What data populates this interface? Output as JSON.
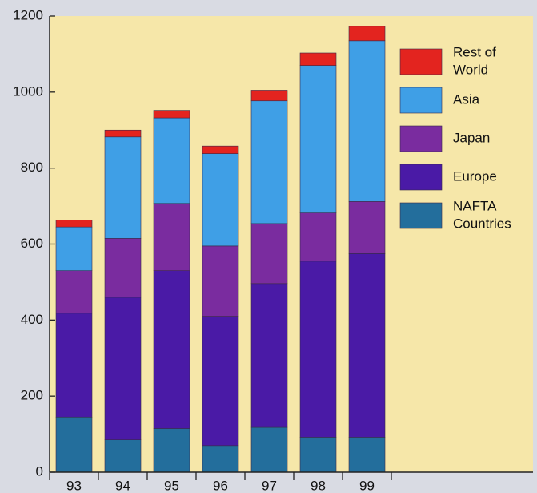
{
  "colors": {
    "page_background": "#d9dbe3",
    "plot_background": "#f6e7a9",
    "nafta": "#236e9c",
    "europe": "#4a1aa6",
    "japan": "#7a2c9f",
    "asia": "#3f9fe6",
    "rest_of_world": "#e3241f",
    "axis": "#222222",
    "text": "#111111"
  },
  "chart_data": {
    "type": "bar",
    "stacked": true,
    "title": "",
    "xlabel": "",
    "ylabel": "",
    "ylim": [
      0,
      1200
    ],
    "yticks": [
      0,
      200,
      400,
      600,
      800,
      1000,
      1200
    ],
    "categories": [
      "93",
      "94",
      "95",
      "96",
      "97",
      "98",
      "99"
    ],
    "grid": false,
    "legend_position": "top-right, inside plot",
    "series": [
      {
        "name": "NAFTA Countries",
        "legend_lines": [
          "NAFTA",
          "Countries"
        ],
        "color_key": "nafta",
        "values": [
          145,
          85,
          115,
          70,
          118,
          92,
          92
        ]
      },
      {
        "name": "Europe",
        "legend_lines": [
          "Europe"
        ],
        "color_key": "europe",
        "values": [
          273,
          375,
          415,
          340,
          378,
          463,
          483
        ]
      },
      {
        "name": "Japan",
        "legend_lines": [
          "Japan"
        ],
        "color_key": "japan",
        "values": [
          112,
          155,
          177,
          185,
          158,
          127,
          137
        ]
      },
      {
        "name": "Asia",
        "legend_lines": [
          "Asia"
        ],
        "color_key": "asia",
        "values": [
          115,
          267,
          225,
          243,
          323,
          388,
          423
        ]
      },
      {
        "name": "Rest of World",
        "legend_lines": [
          "Rest of",
          "World"
        ],
        "color_key": "rest_of_world",
        "values": [
          18,
          18,
          20,
          20,
          28,
          33,
          38
        ]
      }
    ]
  }
}
